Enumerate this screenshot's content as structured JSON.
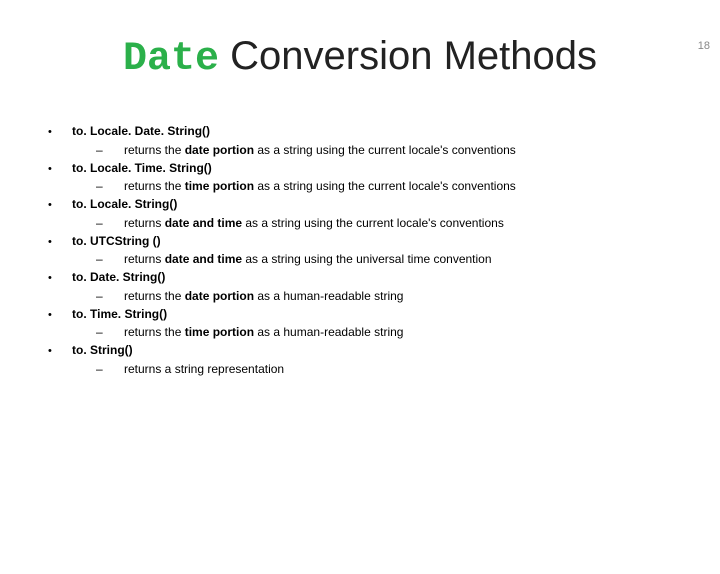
{
  "page_number": "18",
  "title_mono": "Date",
  "title_rest": " Conversion Methods",
  "colors": {
    "mono_green": "#2bb04a",
    "text": "#000000",
    "page_num": "#888888",
    "background": "#ffffff"
  },
  "methods": [
    {
      "name": "to. Locale. Date. String()",
      "desc_pre": "returns the ",
      "desc_bold": "date portion",
      "desc_post": " as a string using the current locale's conventions"
    },
    {
      "name": "to. Locale. Time. String()",
      "desc_pre": "returns the ",
      "desc_bold": "time portion",
      "desc_post": " as a string using the current locale's conventions"
    },
    {
      "name": "to. Locale. String()",
      "desc_pre": "returns ",
      "desc_bold": "date and time",
      "desc_post": " as a string using the current locale's conventions"
    },
    {
      "name": "to. UTCString ()",
      "desc_pre": "returns ",
      "desc_bold": "date and time",
      "desc_post": " as a string using the universal time convention"
    },
    {
      "name": "to. Date. String()",
      "desc_pre": "returns the ",
      "desc_bold": "date portion",
      "desc_post": " as a human-readable string"
    },
    {
      "name": "to. Time. String()",
      "desc_pre": "returns the ",
      "desc_bold": "time portion",
      "desc_post": " as a human-readable string"
    },
    {
      "name": "to. String()",
      "desc_pre": "returns a string representation",
      "desc_bold": "",
      "desc_post": ""
    }
  ]
}
